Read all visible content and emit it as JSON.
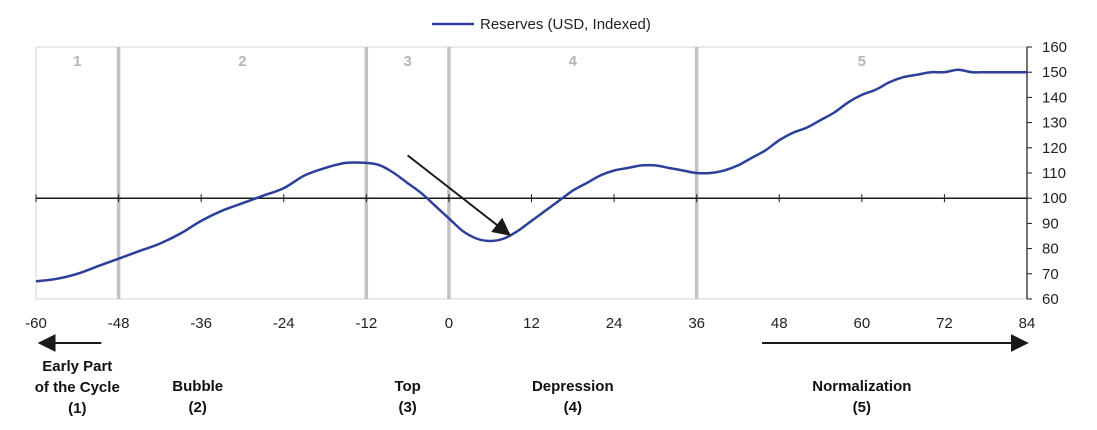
{
  "chart_data": {
    "type": "line",
    "title": "",
    "xlabel": "",
    "ylabel": "",
    "xlim": [
      -60,
      84
    ],
    "ylim": [
      60,
      160
    ],
    "xticks": [
      -60,
      -48,
      -36,
      -24,
      -12,
      0,
      12,
      24,
      36,
      48,
      60,
      72,
      84
    ],
    "yticks": [
      60,
      70,
      80,
      90,
      100,
      110,
      120,
      130,
      140,
      150,
      160
    ],
    "y_axis_position": "right",
    "legend_position": "top-center",
    "reference_line_y": 100,
    "series": [
      {
        "name": "Reserves (USD, Indexed)",
        "color": "#2e3f99",
        "x": [
          -60,
          -57,
          -54,
          -51,
          -48,
          -45,
          -42,
          -39,
          -36,
          -33,
          -30,
          -27,
          -24,
          -21,
          -18,
          -15,
          -12,
          -10,
          -8,
          -6,
          -4,
          -2,
          0,
          2,
          4,
          6,
          8,
          10,
          12,
          14,
          16,
          18,
          20,
          22,
          24,
          26,
          28,
          30,
          32,
          34,
          36,
          38,
          40,
          42,
          44,
          46,
          48,
          50,
          52,
          54,
          56,
          58,
          60,
          62,
          64,
          66,
          68,
          70,
          72,
          74,
          76,
          78,
          80,
          82,
          84
        ],
        "y": [
          67,
          68,
          70,
          73,
          76,
          79,
          82,
          86,
          91,
          95,
          98,
          101,
          104,
          109,
          112,
          114,
          114,
          113,
          110,
          106,
          102,
          97,
          92,
          87,
          84,
          83,
          84,
          87,
          91,
          95,
          99,
          103,
          106,
          109,
          111,
          112,
          113,
          113,
          112,
          111,
          110,
          110,
          111,
          113,
          116,
          119,
          123,
          126,
          128,
          131,
          134,
          138,
          141,
          143,
          146,
          148,
          149,
          150,
          150,
          151,
          150,
          150,
          150,
          150,
          150
        ]
      }
    ],
    "phase_dividers_x": [
      -48,
      -12,
      0,
      36
    ],
    "phases": [
      {
        "number": "1",
        "label_lines": [
          "Early Part",
          "of the Cycle",
          "(1)"
        ]
      },
      {
        "number": "2",
        "label_lines": [
          "Bubble",
          "(2)"
        ]
      },
      {
        "number": "3",
        "label_lines": [
          "Top",
          "(3)"
        ]
      },
      {
        "number": "4",
        "label_lines": [
          "Depression",
          "(4)"
        ]
      },
      {
        "number": "5",
        "label_lines": [
          "Normalization",
          "(5)"
        ]
      }
    ],
    "colors": {
      "divider": "#c2c2c2",
      "axis": "#1a1a1a",
      "arrow": "#1a1a1a"
    }
  }
}
